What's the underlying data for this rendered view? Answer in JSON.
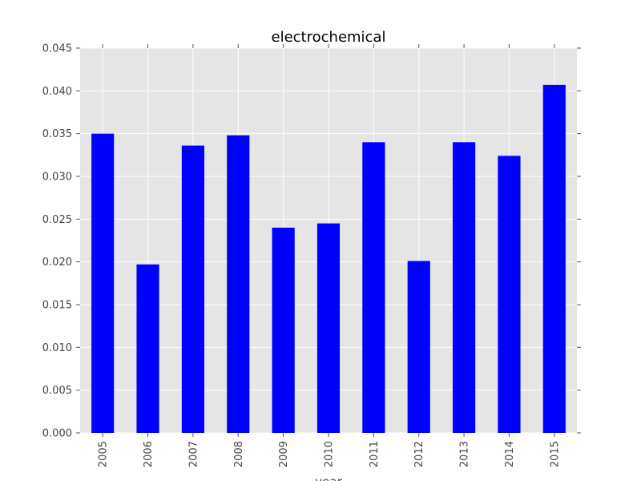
{
  "chart_data": {
    "type": "bar",
    "title": "electrochemical",
    "xlabel": "year",
    "ylabel": "",
    "categories": [
      "2005",
      "2006",
      "2007",
      "2008",
      "2009",
      "2010",
      "2011",
      "2012",
      "2013",
      "2014",
      "2015"
    ],
    "values": [
      0.035,
      0.0197,
      0.0336,
      0.0348,
      0.024,
      0.0245,
      0.034,
      0.0201,
      0.034,
      0.0324,
      0.0407
    ],
    "ylim": [
      0,
      0.045
    ],
    "yticks": [
      0.0,
      0.005,
      0.01,
      0.015,
      0.02,
      0.025,
      0.03,
      0.035,
      0.04,
      0.045
    ],
    "ytick_labels": [
      "0.000",
      "0.005",
      "0.010",
      "0.015",
      "0.020",
      "0.025",
      "0.030",
      "0.035",
      "0.040",
      "0.045"
    ],
    "grid": true,
    "legend": "none",
    "colors": {
      "bar": "#0000ff",
      "plot_background": "#e5e5e5",
      "grid": "#ffffff",
      "tick": "#555555",
      "text": "#444444"
    }
  }
}
